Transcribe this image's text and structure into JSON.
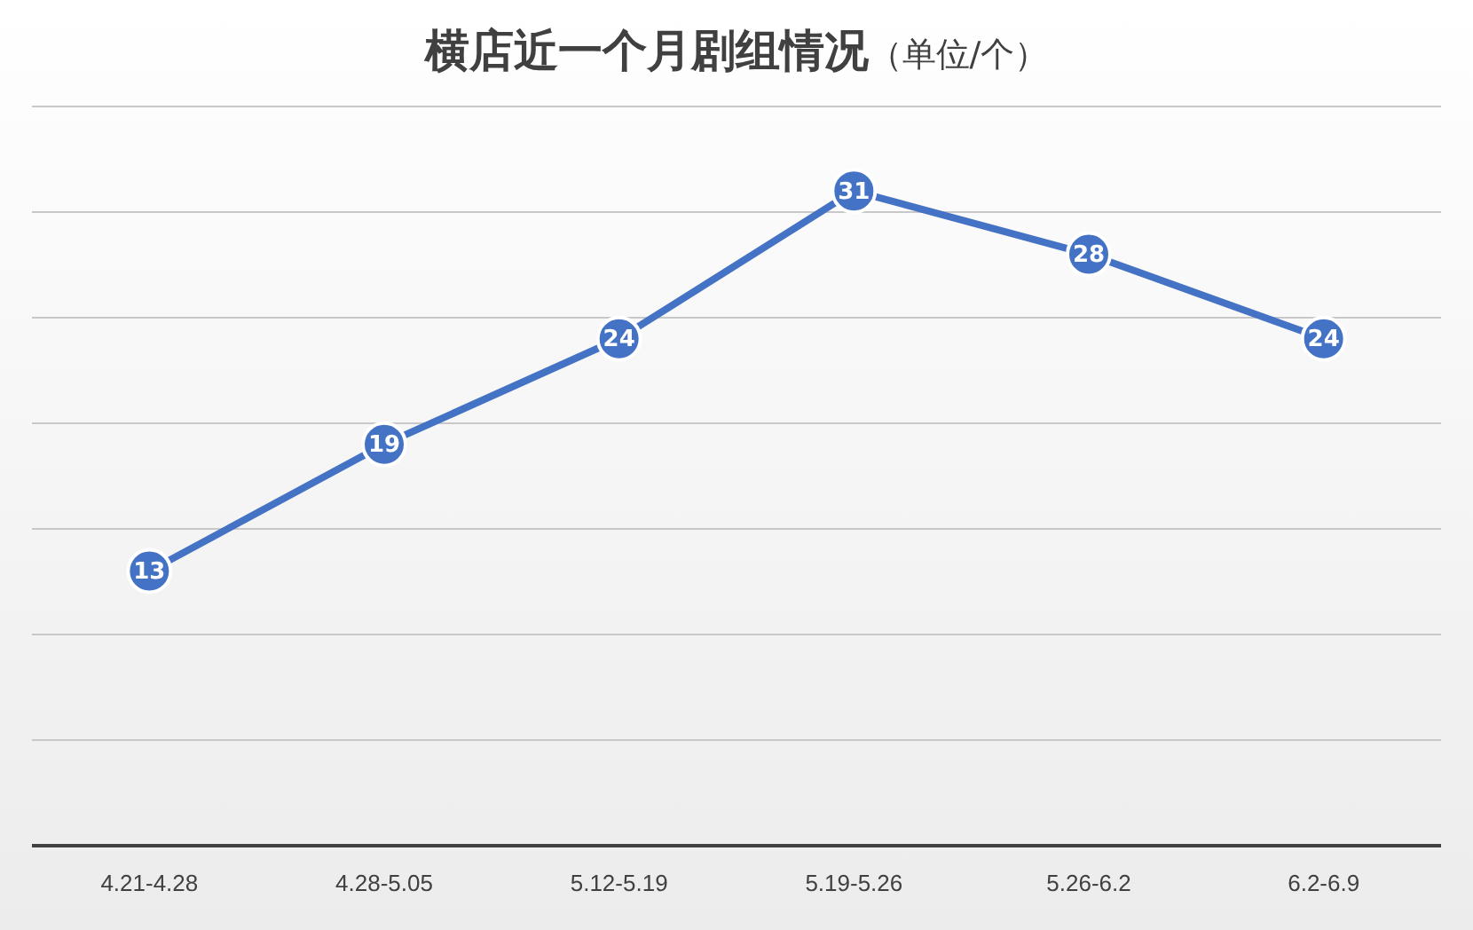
{
  "chart_data": {
    "type": "line",
    "title": "横店近一个月剧组情况",
    "subtitle": "（单位/个）",
    "categories": [
      "4.21-4.28",
      "4.28-5.05",
      "5.12-5.19",
      "5.19-5.26",
      "5.26-6.2",
      "6.2-6.9"
    ],
    "series": [
      {
        "color": "#4472c4",
        "values": [
          13,
          19,
          24,
          31,
          28,
          24
        ]
      }
    ],
    "ylim": [
      0,
      35
    ],
    "yticks": [
      0,
      5,
      10,
      15,
      20,
      25,
      30,
      35
    ],
    "grid": "y",
    "tick_labels": "x",
    "marker": "circle",
    "line_style": "solid",
    "data_labels": true,
    "legend": false
  }
}
